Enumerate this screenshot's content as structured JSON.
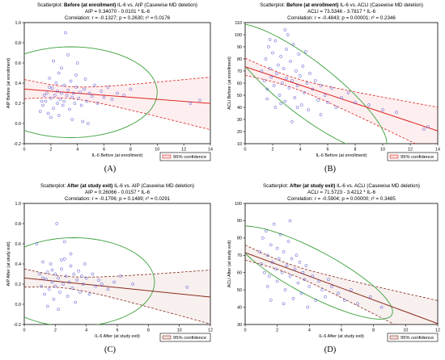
{
  "panels": [
    {
      "letter": "(A)",
      "title_prefix": "Scatterplot: ",
      "title_bold": "Before (at enrollment)",
      "title_suffix": " IL-6 vs. AIP (Casewise MD deletion)",
      "equation": "AIP = 0.34070 - 0.0101 * IL-6",
      "correlation": "Correlation: r = -0.1327; p = 0.2630; r² = 0.0176",
      "legend": "95% confidence",
      "colors": {
        "points": "#4a4ad0",
        "fit": "#e02020",
        "ellipse": "#3aa03a",
        "confidence": "#e02020"
      },
      "chart_data": {
        "type": "scatter",
        "xlabel": "IL-6 Before (at enrollment)",
        "ylabel": "AIP Before (at enrollment)",
        "xlim": [
          0,
          14
        ],
        "ylim": [
          -0.2,
          1.0
        ],
        "xticks": [
          0,
          2,
          4,
          6,
          8,
          10,
          12,
          14
        ],
        "yticks": [
          -0.2,
          0.0,
          0.2,
          0.4,
          0.6,
          0.8,
          1.0
        ],
        "fit": {
          "intercept": 0.3407,
          "slope": -0.0101
        },
        "ellipse": {
          "cx": 3.5,
          "cy": 0.31,
          "rx": 6.5,
          "ry": 0.45,
          "angle": 0
        },
        "conf_band": {
          "xmean": 3.2,
          "se_mean": 0.03,
          "se_slope": 0.012
        },
        "points": [
          [
            1.2,
            0.12
          ],
          [
            1.4,
            0.18
          ],
          [
            1.5,
            0.28
          ],
          [
            1.6,
            0.22
          ],
          [
            1.7,
            0.3
          ],
          [
            1.8,
            0.1
          ],
          [
            1.9,
            0.45
          ],
          [
            2.0,
            0.25
          ],
          [
            2.1,
            0.35
          ],
          [
            2.2,
            0.15
          ],
          [
            2.3,
            0.28
          ],
          [
            2.4,
            0.4
          ],
          [
            2.5,
            0.2
          ],
          [
            2.5,
            0.32
          ],
          [
            2.6,
            0.5
          ],
          [
            2.7,
            0.24
          ],
          [
            2.8,
            0.3
          ],
          [
            2.9,
            0.18
          ],
          [
            3.0,
            0.38
          ],
          [
            3.0,
            0.22
          ],
          [
            3.1,
            0.9
          ],
          [
            3.2,
            0.28
          ],
          [
            3.3,
            0.33
          ],
          [
            3.4,
            0.14
          ],
          [
            3.5,
            0.42
          ],
          [
            3.6,
            0.26
          ],
          [
            3.7,
            0.3
          ],
          [
            3.8,
            0.2
          ],
          [
            3.9,
            0.36
          ],
          [
            4.0,
            0.6
          ],
          [
            4.1,
            0.25
          ],
          [
            4.2,
            0.31
          ],
          [
            4.3,
            0.18
          ],
          [
            4.5,
            0.34
          ],
          [
            4.6,
            0.44
          ],
          [
            4.7,
            0.22
          ],
          [
            4.9,
            0.3
          ],
          [
            5.1,
            0.27
          ],
          [
            5.3,
            0.38
          ],
          [
            5.5,
            0.2
          ],
          [
            5.8,
            0.32
          ],
          [
            6.0,
            0.26
          ],
          [
            6.3,
            0.36
          ],
          [
            6.6,
            0.24
          ],
          [
            7.0,
            0.3
          ],
          [
            7.5,
            0.28
          ],
          [
            8.0,
            0.34
          ],
          [
            2.0,
            0.06
          ],
          [
            3.6,
            0.04
          ],
          [
            1.3,
            0.22
          ],
          [
            12.5,
            0.2
          ],
          [
            13.2,
            0.23
          ],
          [
            2.8,
            0.55
          ],
          [
            2.2,
            0.62
          ],
          [
            3.3,
            0.68
          ],
          [
            4.4,
            0.02
          ],
          [
            4.8,
            0.0
          ],
          [
            2.6,
            0.08
          ],
          [
            1.9,
            0.36
          ],
          [
            3.9,
            0.48
          ]
        ]
      }
    },
    {
      "letter": "(B)",
      "title_prefix": "Scatterplot: ",
      "title_bold": "Before (at enrollment)",
      "title_suffix": " IL-6 vs. ACLI (Casewise MD deletion)",
      "equation": "ACLI = 73.5346 - 3.7817 * IL-6",
      "correlation": "Correlation: r = -0.4843; p = 0.00001; r² = 0.2346",
      "legend": "95% confidence",
      "colors": {
        "points": "#4a4ad0",
        "fit": "#e02020",
        "ellipse": "#3aa03a",
        "confidence": "#e02020"
      },
      "chart_data": {
        "type": "scatter",
        "xlabel": "IL-6 Before (at enrollment)",
        "ylabel": "ACLI Before (at enrollment)",
        "xlim": [
          0,
          14
        ],
        "ylim": [
          10,
          110
        ],
        "xticks": [
          0,
          2,
          4,
          6,
          8,
          10,
          12,
          14
        ],
        "yticks": [
          10,
          20,
          30,
          40,
          50,
          60,
          70,
          80,
          90,
          100,
          110
        ],
        "fit": {
          "intercept": 73.5346,
          "slope": -3.7817
        },
        "ellipse": {
          "cx": 4.5,
          "cy": 56,
          "rx": 7.2,
          "ry": 22,
          "angle": -38
        },
        "conf_band": {
          "xmean": 3.2,
          "se_mean": 2.2,
          "se_slope": 0.9
        },
        "points": [
          [
            1.2,
            70
          ],
          [
            1.4,
            62
          ],
          [
            1.5,
            80
          ],
          [
            1.6,
            55
          ],
          [
            1.7,
            90
          ],
          [
            1.8,
            72
          ],
          [
            1.9,
            65
          ],
          [
            2.0,
            85
          ],
          [
            2.1,
            58
          ],
          [
            2.2,
            95
          ],
          [
            2.3,
            68
          ],
          [
            2.4,
            75
          ],
          [
            2.5,
            50
          ],
          [
            2.6,
            82
          ],
          [
            2.7,
            60
          ],
          [
            2.8,
            72
          ],
          [
            2.9,
            45
          ],
          [
            3.0,
            88
          ],
          [
            3.0,
            64
          ],
          [
            3.1,
            100
          ],
          [
            3.2,
            56
          ],
          [
            3.3,
            78
          ],
          [
            3.4,
            62
          ],
          [
            3.5,
            92
          ],
          [
            3.6,
            48
          ],
          [
            3.7,
            70
          ],
          [
            3.8,
            58
          ],
          [
            3.9,
            84
          ],
          [
            4.0,
            66
          ],
          [
            4.1,
            42
          ],
          [
            4.2,
            74
          ],
          [
            4.3,
            52
          ],
          [
            4.5,
            60
          ],
          [
            4.6,
            38
          ],
          [
            4.7,
            68
          ],
          [
            4.9,
            55
          ],
          [
            5.1,
            62
          ],
          [
            5.3,
            46
          ],
          [
            5.5,
            58
          ],
          [
            5.8,
            50
          ],
          [
            6.0,
            44
          ],
          [
            6.3,
            56
          ],
          [
            6.6,
            40
          ],
          [
            7.0,
            48
          ],
          [
            7.5,
            52
          ],
          [
            8.0,
            44
          ],
          [
            9.0,
            42
          ],
          [
            10.0,
            38
          ],
          [
            11.0,
            36
          ],
          [
            13.0,
            22
          ],
          [
            13.3,
            24
          ],
          [
            2.2,
            40
          ],
          [
            2.6,
            43
          ],
          [
            3.4,
            28
          ],
          [
            1.8,
            96
          ],
          [
            4.4,
            86
          ],
          [
            2.9,
            104
          ],
          [
            5.5,
            34
          ],
          [
            3.8,
            40
          ],
          [
            1.6,
            47
          ]
        ]
      }
    },
    {
      "letter": "(C)",
      "title_prefix": "Scatterplot: ",
      "title_bold": "After (at study exit)",
      "title_suffix": " IL-6 vs. AIP (Casewise MD deletion)",
      "equation": "AIP = 0.26066 - 0.0157 * IL-6",
      "correlation": "Correlation: r = -0.1706; p = 0.1489; r² = 0.0291",
      "legend": "95% confidence",
      "colors": {
        "points": "#4a4ad0",
        "fit": "#8b2a1a",
        "ellipse": "#3aa03a",
        "confidence": "#8b2a1a"
      },
      "chart_data": {
        "type": "scatter",
        "xlabel": "IL-6 After (at study exit)",
        "ylabel": "AIP After (at study exit)",
        "xlim": [
          0,
          12
        ],
        "ylim": [
          -0.2,
          1.0
        ],
        "xticks": [
          0,
          2,
          4,
          6,
          8,
          10,
          12
        ],
        "yticks": [
          -0.2,
          0.0,
          0.2,
          0.4,
          0.6,
          0.8,
          1.0
        ],
        "fit": {
          "intercept": 0.26066,
          "slope": -0.0157
        },
        "ellipse": {
          "cx": 3.2,
          "cy": 0.22,
          "rx": 5.2,
          "ry": 0.44,
          "angle": 0
        },
        "conf_band": {
          "xmean": 2.5,
          "se_mean": 0.03,
          "se_slope": 0.014
        },
        "points": [
          [
            0.8,
            0.6
          ],
          [
            1.0,
            0.3
          ],
          [
            1.1,
            0.18
          ],
          [
            1.2,
            0.42
          ],
          [
            1.3,
            0.1
          ],
          [
            1.4,
            0.25
          ],
          [
            1.5,
            0.32
          ],
          [
            1.6,
            0.15
          ],
          [
            1.7,
            0.4
          ],
          [
            1.8,
            0.22
          ],
          [
            1.9,
            0.05
          ],
          [
            2.0,
            0.3
          ],
          [
            2.0,
            0.18
          ],
          [
            2.1,
            0.8
          ],
          [
            2.2,
            0.26
          ],
          [
            2.3,
            0.12
          ],
          [
            2.4,
            0.35
          ],
          [
            2.5,
            0.2
          ],
          [
            2.6,
            0.45
          ],
          [
            2.7,
            0.28
          ],
          [
            2.8,
            0.08
          ],
          [
            2.9,
            0.22
          ],
          [
            3.0,
            0.38
          ],
          [
            3.1,
            0.16
          ],
          [
            3.2,
            0.3
          ],
          [
            3.3,
            0.02
          ],
          [
            3.4,
            0.24
          ],
          [
            3.5,
            0.33
          ],
          [
            3.6,
            0.12
          ],
          [
            3.7,
            0.28
          ],
          [
            3.8,
            0.2
          ],
          [
            4.0,
            0.26
          ],
          [
            4.2,
            0.1
          ],
          [
            4.4,
            0.3
          ],
          [
            4.6,
            0.18
          ],
          [
            4.8,
            0.24
          ],
          [
            5.0,
            0.2
          ],
          [
            5.4,
            0.15
          ],
          [
            5.8,
            0.22
          ],
          [
            6.2,
            0.28
          ],
          [
            7.0,
            0.2
          ],
          [
            10.5,
            0.17
          ],
          [
            1.5,
            -0.02
          ],
          [
            2.2,
            -0.05
          ],
          [
            3.0,
            0.5
          ],
          [
            2.6,
            0.62
          ],
          [
            1.2,
            0.26
          ],
          [
            3.9,
            0.4
          ],
          [
            2.4,
            0.44
          ],
          [
            1.8,
            0.34
          ]
        ]
      }
    },
    {
      "letter": "(D)",
      "title_prefix": "Scatterplot: ",
      "title_bold": "After (at study exit)",
      "title_suffix": " IL-6 vs. ACLI (Casewise MD deletion)",
      "equation": "ACLI = 71.5723 - 3.4212 * IL-6",
      "correlation": "Correlation: r = -0.5904; p = 0.00000; r² = 0.3485",
      "legend": "95% confidence",
      "colors": {
        "points": "#4a4ad0",
        "fit": "#8b2a1a",
        "ellipse": "#3aa03a",
        "confidence": "#8b2a1a"
      },
      "chart_data": {
        "type": "scatter",
        "xlabel": "IL-6 After (at study exit)",
        "ylabel": "ACLI After (at study exit)",
        "xlim": [
          0,
          12
        ],
        "ylim": [
          30,
          100
        ],
        "xticks": [
          0,
          2,
          4,
          6,
          8,
          10,
          12
        ],
        "yticks": [
          30,
          40,
          50,
          60,
          70,
          80,
          90,
          100
        ],
        "fit": {
          "intercept": 71.5723,
          "slope": -3.4212
        },
        "ellipse": {
          "cx": 4.2,
          "cy": 60,
          "rx": 5.6,
          "ry": 13,
          "angle": -28
        },
        "conf_band": {
          "xmean": 2.5,
          "se_mean": 1.4,
          "se_slope": 0.7
        },
        "points": [
          [
            0.9,
            72
          ],
          [
            1.0,
            65
          ],
          [
            1.1,
            80
          ],
          [
            1.2,
            60
          ],
          [
            1.3,
            84
          ],
          [
            1.4,
            70
          ],
          [
            1.5,
            58
          ],
          [
            1.6,
            76
          ],
          [
            1.7,
            66
          ],
          [
            1.8,
            88
          ],
          [
            1.9,
            62
          ],
          [
            2.0,
            74
          ],
          [
            2.0,
            55
          ],
          [
            2.1,
            68
          ],
          [
            2.2,
            82
          ],
          [
            2.3,
            60
          ],
          [
            2.4,
            72
          ],
          [
            2.5,
            50
          ],
          [
            2.6,
            64
          ],
          [
            2.7,
            78
          ],
          [
            2.8,
            58
          ],
          [
            2.9,
            68
          ],
          [
            3.0,
            45
          ],
          [
            3.1,
            62
          ],
          [
            3.2,
            70
          ],
          [
            3.3,
            54
          ],
          [
            3.4,
            66
          ],
          [
            3.5,
            48
          ],
          [
            3.6,
            60
          ],
          [
            3.7,
            56
          ],
          [
            3.8,
            64
          ],
          [
            4.0,
            52
          ],
          [
            4.2,
            58
          ],
          [
            4.4,
            44
          ],
          [
            4.6,
            55
          ],
          [
            4.8,
            50
          ],
          [
            5.0,
            46
          ],
          [
            5.4,
            52
          ],
          [
            5.8,
            48
          ],
          [
            6.2,
            44
          ],
          [
            6.6,
            50
          ],
          [
            7.0,
            42
          ],
          [
            7.8,
            46
          ],
          [
            8.5,
            40
          ],
          [
            1.6,
            44
          ],
          [
            2.4,
            42
          ],
          [
            3.9,
            40
          ],
          [
            2.8,
            90
          ],
          [
            1.4,
            52
          ],
          [
            5.2,
            56
          ]
        ]
      }
    }
  ]
}
